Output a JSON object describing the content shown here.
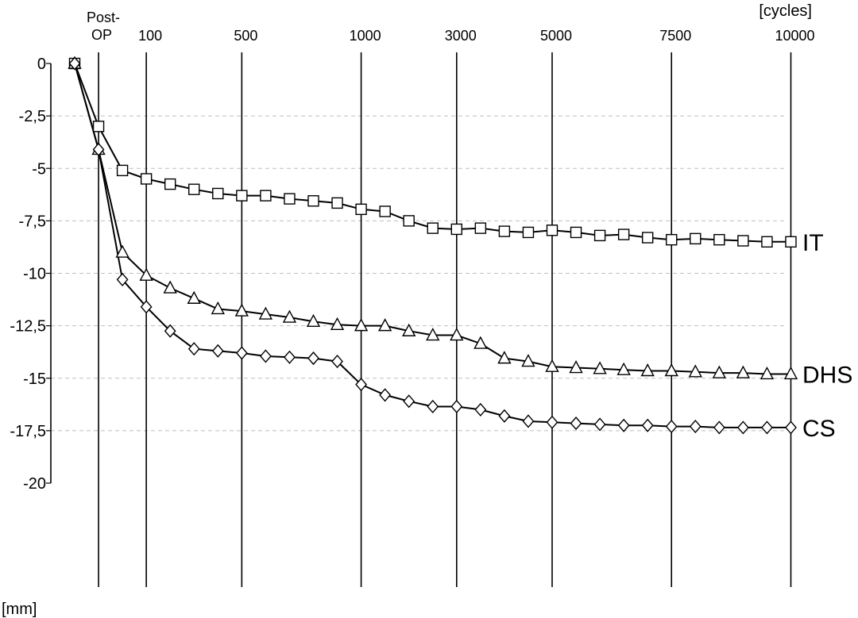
{
  "chart_data": {
    "type": "line",
    "xlabel": "[cycles]",
    "ylabel": "[mm]",
    "ylim": [
      -20,
      0
    ],
    "yticks": [
      0,
      -2.5,
      -5,
      -7.5,
      -10,
      -12.5,
      -15,
      -17.5,
      -20
    ],
    "ytick_labels": [
      "0",
      "-2,5",
      "-5",
      "-7,5",
      "-10",
      "-12,5",
      "-15",
      "-17,5",
      "-20"
    ],
    "xticks": [
      {
        "index": 1,
        "label": "Post-\nOP"
      },
      {
        "index": 3,
        "label": "100"
      },
      {
        "index": 7,
        "label": "500"
      },
      {
        "index": 12,
        "label": "1000"
      },
      {
        "index": 16,
        "label": "3000"
      },
      {
        "index": 20,
        "label": "5000"
      },
      {
        "index": 25,
        "label": "7500"
      },
      {
        "index": 30,
        "label": "10000"
      }
    ],
    "x_index_range": [
      0,
      30
    ],
    "grid": "dashed horizontal lines, solid vertical lines at labelled cycles",
    "series": [
      {
        "name": "IT",
        "marker": "square",
        "values": [
          0,
          -3,
          -5.1,
          -5.5,
          -5.75,
          -6,
          -6.2,
          -6.3,
          -6.3,
          -6.45,
          -6.55,
          -6.65,
          -6.95,
          -7.05,
          -7.5,
          -7.85,
          -7.9,
          -7.85,
          -8,
          -8.05,
          -7.95,
          -8.05,
          -8.2,
          -8.15,
          -8.3,
          -8.4,
          -8.35,
          -8.4,
          -8.45,
          -8.5,
          -8.5
        ]
      },
      {
        "name": "DHS",
        "marker": "triangle",
        "values": [
          0,
          -4.1,
          -9,
          -10.1,
          -10.7,
          -11.2,
          -11.7,
          -11.8,
          -11.95,
          -12.1,
          -12.3,
          -12.45,
          -12.5,
          -12.5,
          -12.75,
          -12.95,
          -12.95,
          -13.35,
          -14.05,
          -14.2,
          -14.45,
          -14.5,
          -14.55,
          -14.6,
          -14.65,
          -14.65,
          -14.7,
          -14.75,
          -14.75,
          -14.8,
          -14.8
        ]
      },
      {
        "name": "CS",
        "marker": "diamond",
        "values": [
          0,
          -4.1,
          -10.3,
          -11.6,
          -12.75,
          -13.6,
          -13.7,
          -13.8,
          -13.95,
          -14,
          -14.05,
          -14.2,
          -15.3,
          -15.8,
          -16.1,
          -16.35,
          -16.35,
          -16.5,
          -16.8,
          -17.05,
          -17.1,
          -17.15,
          -17.2,
          -17.25,
          -17.25,
          -17.3,
          -17.3,
          -17.35,
          -17.35,
          -17.35,
          -17.35
        ]
      }
    ]
  }
}
